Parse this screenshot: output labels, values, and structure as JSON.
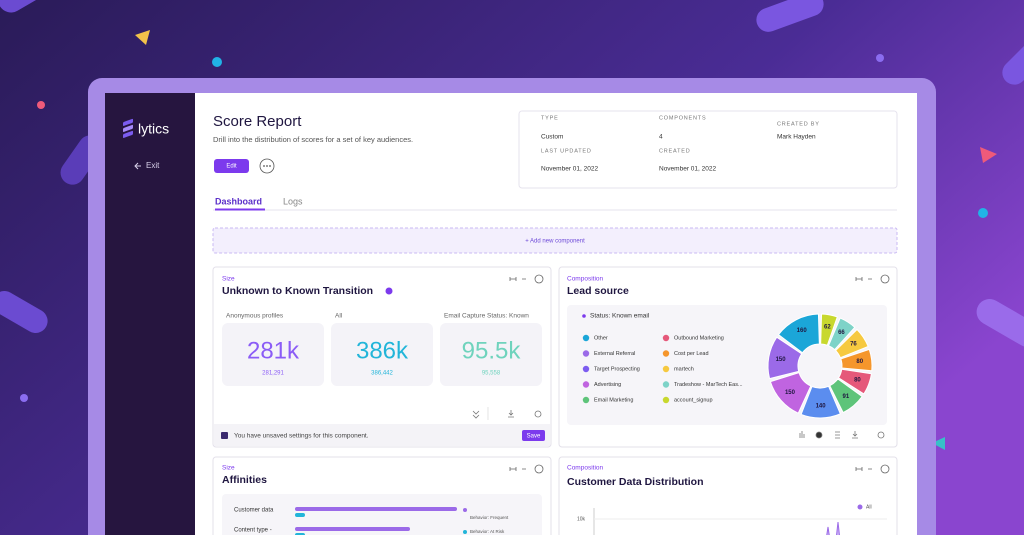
{
  "sidebar": {
    "brand": "lytics",
    "exit": "Exit"
  },
  "header": {
    "title": "Score Report",
    "description": "Drill into the distribution of scores for a set of key audiences.",
    "edit": "Edit"
  },
  "meta": [
    {
      "label": "TYPE",
      "value": "Custom"
    },
    {
      "label": "COMPONENTS",
      "value": "4"
    },
    {
      "label": "CREATED BY",
      "value": "Mark Hayden"
    },
    {
      "label": "LAST UPDATED",
      "value": "November 01, 2022"
    },
    {
      "label": "CREATED",
      "value": "November 01, 2022"
    }
  ],
  "tabs": [
    "Dashboard",
    "Logs"
  ],
  "add_component": "+ Add new component",
  "transition_card": {
    "category": "Size",
    "title": "Unknown to Known Transition",
    "metrics": [
      {
        "label": "Anonymous profiles",
        "value": "281k",
        "detail": "281,291",
        "color": "#8b5cf6"
      },
      {
        "label": "All",
        "value": "386k",
        "detail": "386,442",
        "color": "#22b5d9"
      },
      {
        "label": "Email Capture Status: Known",
        "value": "95.5k",
        "detail": "95,558",
        "color": "#6fd3bd"
      }
    ],
    "unsaved": "You have unsaved settings for this component.",
    "save": "Save"
  },
  "lead_source_card": {
    "category": "Composition",
    "title": "Lead source",
    "status": "Status: Known email",
    "legend": [
      {
        "name": "Other",
        "color": "#1ba6d8"
      },
      {
        "name": "Outbound Marketing",
        "color": "#e5587a"
      },
      {
        "name": "External Referral",
        "color": "#9b6ae8"
      },
      {
        "name": "Cost per Lead",
        "color": "#f5962c"
      },
      {
        "name": "Target Prospecting",
        "color": "#7c5cf0"
      },
      {
        "name": "martech",
        "color": "#f6c940"
      },
      {
        "name": "Advertising",
        "color": "#c064e0"
      },
      {
        "name": "Tradeshow - MarTech Eas...",
        "color": "#7ed3c8"
      },
      {
        "name": "Email Marketing",
        "color": "#5ec47a"
      },
      {
        "name": "account_signup",
        "color": "#c8d82e"
      }
    ],
    "donut": [
      {
        "value": 62,
        "color": "#c8d82e"
      },
      {
        "value": 66,
        "color": "#7ed3c8"
      },
      {
        "value": 76,
        "color": "#f6c940"
      },
      {
        "value": 80,
        "color": "#f5962c"
      },
      {
        "value": 80,
        "color": "#e5587a"
      },
      {
        "value": 91,
        "color": "#5ec47a"
      },
      {
        "value": 140,
        "color": "#5b8def"
      },
      {
        "value": 150,
        "color": "#c064e0"
      },
      {
        "value": 150,
        "color": "#9b6ae8"
      },
      {
        "value": 160,
        "color": "#1ba6d8"
      }
    ]
  },
  "affinities_card": {
    "category": "Size",
    "title": "Affinities",
    "rows": [
      "Customer data",
      "Content type -"
    ],
    "legend": [
      "Behavior: Frequent",
      "Behavior: At Risk"
    ]
  },
  "distribution_card": {
    "category": "Composition",
    "title": "Customer Data Distribution",
    "legend": "All",
    "y_tick": "10k"
  }
}
